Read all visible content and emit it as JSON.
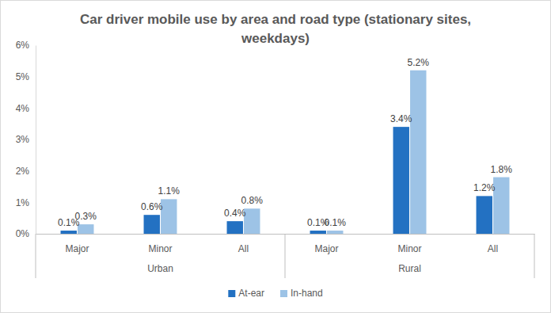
{
  "chart_data": {
    "type": "bar",
    "title": "Car driver mobile use by area and road type (stationary sites, weekdays)",
    "categories": [
      "Major",
      "Minor",
      "All",
      "Major",
      "Minor",
      "All"
    ],
    "category_groups": [
      "Urban",
      "Urban",
      "Urban",
      "Rural",
      "Rural",
      "Rural"
    ],
    "series": [
      {
        "name": "At-ear",
        "color": "#2371c2",
        "values": [
          0.1,
          0.6,
          0.4,
          0.1,
          3.4,
          1.2
        ],
        "value_labels": [
          "0.1%",
          "0.6%",
          "0.4%",
          "0.1%",
          "3.4%",
          "1.2%"
        ]
      },
      {
        "name": "In-hand",
        "color": "#9dc3e6",
        "values": [
          0.3,
          1.1,
          0.8,
          0.1,
          5.2,
          1.8
        ],
        "value_labels": [
          "0.3%",
          "1.1%",
          "0.8%",
          "0.1%",
          "5.2%",
          "1.8%"
        ]
      }
    ],
    "ylim": [
      0,
      6
    ],
    "yticks": [
      {
        "value": 0,
        "label": "0%"
      },
      {
        "value": 1,
        "label": "1%"
      },
      {
        "value": 2,
        "label": "2%"
      },
      {
        "value": 3,
        "label": "3%"
      },
      {
        "value": 4,
        "label": "4%"
      },
      {
        "value": 5,
        "label": "5%"
      },
      {
        "value": 6,
        "label": "6%"
      }
    ],
    "grid": false,
    "data_labels": true,
    "legend": "bottom"
  }
}
